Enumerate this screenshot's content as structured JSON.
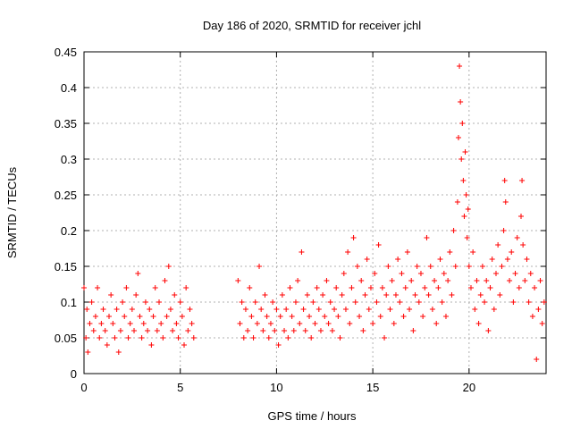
{
  "chart_data": {
    "type": "scatter",
    "title": "Day 186 of 2020, SRMTID for receiver jchl",
    "xlabel": "GPS time / hours",
    "ylabel": "SRMTID / TECUs",
    "xlim": [
      0,
      24
    ],
    "ylim": [
      0,
      0.45
    ],
    "xticks": [
      0,
      5,
      10,
      15,
      20
    ],
    "xtick_labels": [
      "0",
      "5",
      "10",
      "15",
      "20"
    ],
    "yticks": [
      0,
      0.05,
      0.1,
      0.15,
      0.2,
      0.25,
      0.3,
      0.35,
      0.4,
      0.45
    ],
    "ytick_labels": [
      "0",
      "0.05",
      "0.1",
      "0.15",
      "0.2",
      "0.25",
      "0.3",
      "0.35",
      "0.4",
      "0.45"
    ],
    "grid": true,
    "marker": "+",
    "series_color": "#ff0000",
    "data_gap_hours": [
      5.8,
      8.0
    ],
    "series": [
      {
        "name": "SRMTID",
        "points": [
          [
            0.0,
            0.12
          ],
          [
            0.1,
            0.05
          ],
          [
            0.15,
            0.09
          ],
          [
            0.2,
            0.03
          ],
          [
            0.3,
            0.07
          ],
          [
            0.4,
            0.1
          ],
          [
            0.5,
            0.06
          ],
          [
            0.6,
            0.08
          ],
          [
            0.7,
            0.12
          ],
          [
            0.8,
            0.05
          ],
          [
            0.9,
            0.07
          ],
          [
            1.0,
            0.09
          ],
          [
            1.1,
            0.06
          ],
          [
            1.2,
            0.04
          ],
          [
            1.3,
            0.08
          ],
          [
            1.4,
            0.11
          ],
          [
            1.5,
            0.07
          ],
          [
            1.6,
            0.05
          ],
          [
            1.7,
            0.09
          ],
          [
            1.8,
            0.03
          ],
          [
            1.9,
            0.06
          ],
          [
            2.0,
            0.1
          ],
          [
            2.1,
            0.08
          ],
          [
            2.2,
            0.12
          ],
          [
            2.3,
            0.05
          ],
          [
            2.4,
            0.07
          ],
          [
            2.5,
            0.09
          ],
          [
            2.6,
            0.06
          ],
          [
            2.7,
            0.11
          ],
          [
            2.8,
            0.14
          ],
          [
            2.9,
            0.08
          ],
          [
            3.0,
            0.05
          ],
          [
            3.1,
            0.07
          ],
          [
            3.2,
            0.1
          ],
          [
            3.3,
            0.06
          ],
          [
            3.4,
            0.09
          ],
          [
            3.5,
            0.04
          ],
          [
            3.6,
            0.08
          ],
          [
            3.7,
            0.12
          ],
          [
            3.8,
            0.06
          ],
          [
            3.9,
            0.1
          ],
          [
            4.0,
            0.07
          ],
          [
            4.1,
            0.05
          ],
          [
            4.2,
            0.13
          ],
          [
            4.3,
            0.08
          ],
          [
            4.4,
            0.15
          ],
          [
            4.5,
            0.09
          ],
          [
            4.6,
            0.06
          ],
          [
            4.7,
            0.11
          ],
          [
            4.8,
            0.07
          ],
          [
            4.9,
            0.05
          ],
          [
            5.0,
            0.1
          ],
          [
            5.1,
            0.08
          ],
          [
            5.2,
            0.04
          ],
          [
            5.3,
            0.12
          ],
          [
            5.4,
            0.06
          ],
          [
            5.5,
            0.09
          ],
          [
            5.6,
            0.07
          ],
          [
            5.7,
            0.05
          ],
          [
            8.0,
            0.13
          ],
          [
            8.1,
            0.07
          ],
          [
            8.2,
            0.1
          ],
          [
            8.3,
            0.05
          ],
          [
            8.4,
            0.09
          ],
          [
            8.5,
            0.06
          ],
          [
            8.6,
            0.12
          ],
          [
            8.7,
            0.08
          ],
          [
            8.8,
            0.05
          ],
          [
            8.9,
            0.1
          ],
          [
            9.0,
            0.07
          ],
          [
            9.1,
            0.15
          ],
          [
            9.2,
            0.09
          ],
          [
            9.3,
            0.06
          ],
          [
            9.4,
            0.11
          ],
          [
            9.5,
            0.08
          ],
          [
            9.6,
            0.05
          ],
          [
            9.7,
            0.07
          ],
          [
            9.8,
            0.1
          ],
          [
            9.9,
            0.06
          ],
          [
            10.0,
            0.09
          ],
          [
            10.1,
            0.04
          ],
          [
            10.2,
            0.08
          ],
          [
            10.3,
            0.11
          ],
          [
            10.4,
            0.06
          ],
          [
            10.5,
            0.09
          ],
          [
            10.6,
            0.05
          ],
          [
            10.7,
            0.12
          ],
          [
            10.8,
            0.08
          ],
          [
            10.9,
            0.06
          ],
          [
            11.0,
            0.1
          ],
          [
            11.1,
            0.13
          ],
          [
            11.2,
            0.07
          ],
          [
            11.3,
            0.17
          ],
          [
            11.4,
            0.09
          ],
          [
            11.5,
            0.06
          ],
          [
            11.6,
            0.11
          ],
          [
            11.7,
            0.08
          ],
          [
            11.8,
            0.05
          ],
          [
            11.9,
            0.1
          ],
          [
            12.0,
            0.07
          ],
          [
            12.1,
            0.12
          ],
          [
            12.2,
            0.09
          ],
          [
            12.3,
            0.06
          ],
          [
            12.4,
            0.11
          ],
          [
            12.5,
            0.08
          ],
          [
            12.6,
            0.13
          ],
          [
            12.7,
            0.07
          ],
          [
            12.8,
            0.1
          ],
          [
            12.9,
            0.06
          ],
          [
            13.0,
            0.09
          ],
          [
            13.1,
            0.12
          ],
          [
            13.2,
            0.08
          ],
          [
            13.3,
            0.05
          ],
          [
            13.4,
            0.11
          ],
          [
            13.5,
            0.14
          ],
          [
            13.6,
            0.09
          ],
          [
            13.7,
            0.17
          ],
          [
            13.8,
            0.07
          ],
          [
            13.9,
            0.12
          ],
          [
            14.0,
            0.19
          ],
          [
            14.1,
            0.1
          ],
          [
            14.2,
            0.15
          ],
          [
            14.3,
            0.08
          ],
          [
            14.4,
            0.13
          ],
          [
            14.5,
            0.06
          ],
          [
            14.6,
            0.11
          ],
          [
            14.7,
            0.16
          ],
          [
            14.8,
            0.09
          ],
          [
            14.9,
            0.12
          ],
          [
            15.0,
            0.07
          ],
          [
            15.1,
            0.14
          ],
          [
            15.2,
            0.1
          ],
          [
            15.3,
            0.18
          ],
          [
            15.4,
            0.08
          ],
          [
            15.5,
            0.12
          ],
          [
            15.6,
            0.05
          ],
          [
            15.7,
            0.11
          ],
          [
            15.8,
            0.15
          ],
          [
            15.9,
            0.09
          ],
          [
            16.0,
            0.13
          ],
          [
            16.1,
            0.07
          ],
          [
            16.2,
            0.11
          ],
          [
            16.3,
            0.16
          ],
          [
            16.4,
            0.1
          ],
          [
            16.5,
            0.14
          ],
          [
            16.6,
            0.08
          ],
          [
            16.7,
            0.12
          ],
          [
            16.8,
            0.17
          ],
          [
            16.9,
            0.09
          ],
          [
            17.0,
            0.13
          ],
          [
            17.1,
            0.06
          ],
          [
            17.2,
            0.11
          ],
          [
            17.3,
            0.15
          ],
          [
            17.4,
            0.1
          ],
          [
            17.5,
            0.14
          ],
          [
            17.6,
            0.08
          ],
          [
            17.7,
            0.12
          ],
          [
            17.8,
            0.19
          ],
          [
            17.9,
            0.11
          ],
          [
            18.0,
            0.15
          ],
          [
            18.1,
            0.09
          ],
          [
            18.2,
            0.13
          ],
          [
            18.3,
            0.07
          ],
          [
            18.4,
            0.12
          ],
          [
            18.5,
            0.16
          ],
          [
            18.6,
            0.1
          ],
          [
            18.7,
            0.14
          ],
          [
            18.8,
            0.08
          ],
          [
            18.9,
            0.13
          ],
          [
            19.0,
            0.17
          ],
          [
            19.1,
            0.11
          ],
          [
            19.2,
            0.2
          ],
          [
            19.3,
            0.15
          ],
          [
            19.4,
            0.24
          ],
          [
            19.45,
            0.33
          ],
          [
            19.5,
            0.43
          ],
          [
            19.55,
            0.38
          ],
          [
            19.6,
            0.3
          ],
          [
            19.65,
            0.35
          ],
          [
            19.7,
            0.27
          ],
          [
            19.75,
            0.22
          ],
          [
            19.8,
            0.31
          ],
          [
            19.85,
            0.25
          ],
          [
            19.9,
            0.19
          ],
          [
            19.95,
            0.23
          ],
          [
            20.0,
            0.15
          ],
          [
            20.1,
            0.12
          ],
          [
            20.2,
            0.17
          ],
          [
            20.3,
            0.09
          ],
          [
            20.4,
            0.13
          ],
          [
            20.5,
            0.07
          ],
          [
            20.6,
            0.11
          ],
          [
            20.7,
            0.15
          ],
          [
            20.8,
            0.1
          ],
          [
            20.9,
            0.13
          ],
          [
            21.0,
            0.06
          ],
          [
            21.1,
            0.12
          ],
          [
            21.2,
            0.16
          ],
          [
            21.3,
            0.09
          ],
          [
            21.4,
            0.14
          ],
          [
            21.5,
            0.18
          ],
          [
            21.6,
            0.11
          ],
          [
            21.7,
            0.15
          ],
          [
            21.8,
            0.2
          ],
          [
            21.85,
            0.27
          ],
          [
            21.9,
            0.24
          ],
          [
            22.0,
            0.16
          ],
          [
            22.1,
            0.13
          ],
          [
            22.2,
            0.17
          ],
          [
            22.3,
            0.1
          ],
          [
            22.4,
            0.14
          ],
          [
            22.5,
            0.19
          ],
          [
            22.6,
            0.12
          ],
          [
            22.7,
            0.22
          ],
          [
            22.75,
            0.27
          ],
          [
            22.8,
            0.18
          ],
          [
            22.9,
            0.13
          ],
          [
            23.0,
            0.16
          ],
          [
            23.1,
            0.1
          ],
          [
            23.2,
            0.14
          ],
          [
            23.3,
            0.08
          ],
          [
            23.4,
            0.12
          ],
          [
            23.5,
            0.02
          ],
          [
            23.6,
            0.09
          ],
          [
            23.7,
            0.13
          ],
          [
            23.8,
            0.07
          ],
          [
            23.9,
            0.1
          ]
        ]
      }
    ]
  }
}
